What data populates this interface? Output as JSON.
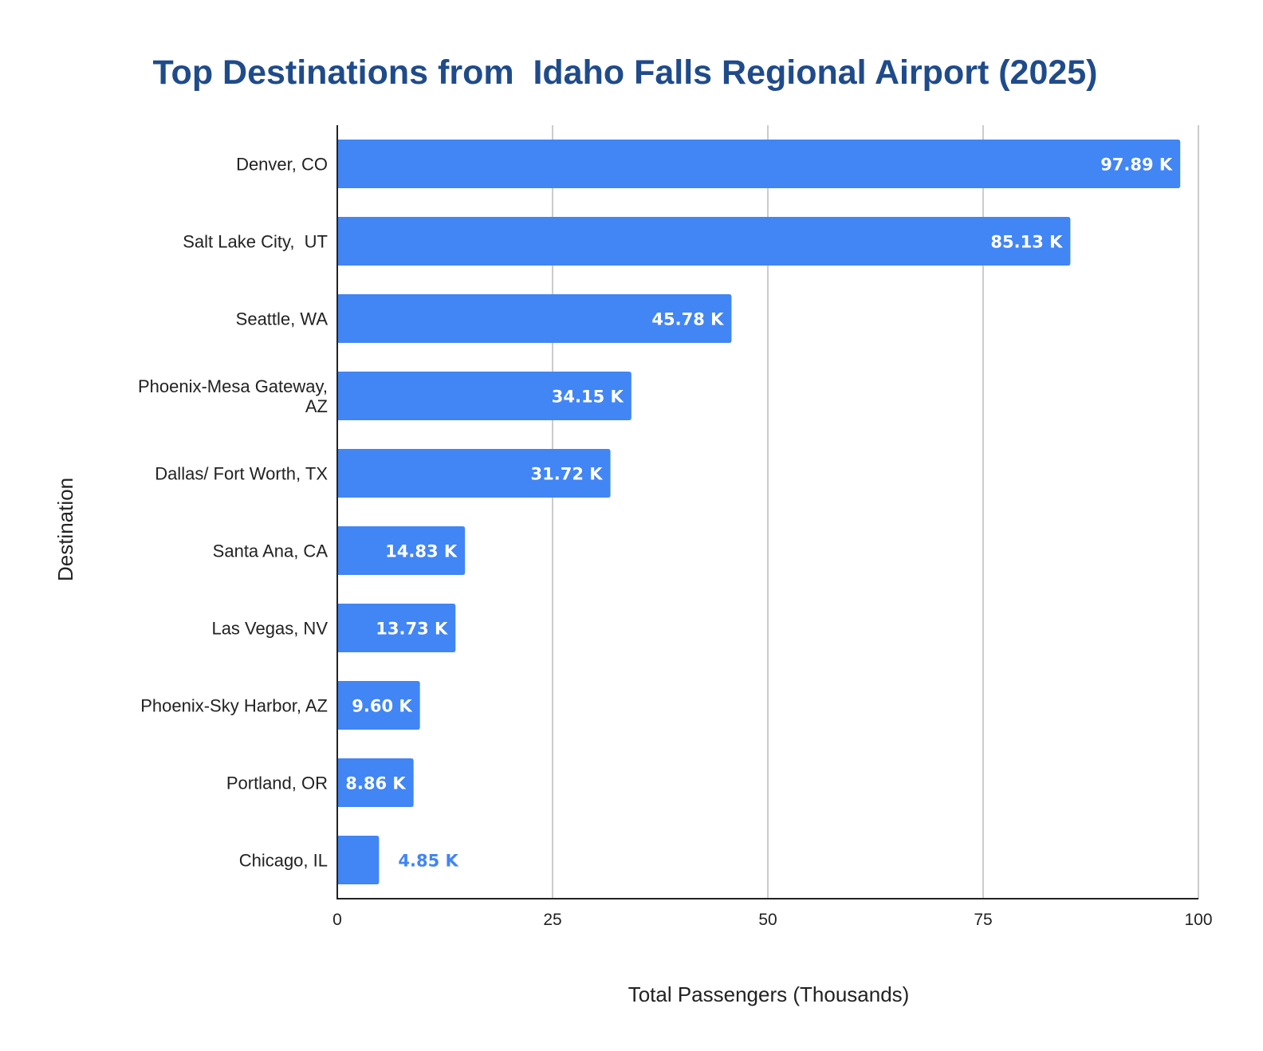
{
  "chart_data": {
    "type": "bar",
    "orientation": "horizontal",
    "title": "Top Destinations from  Idaho Falls Regional Airport (2025)",
    "xlabel": "Total Passengers (Thousands)",
    "ylabel": "Destination",
    "categories": [
      [
        "Denver, CO"
      ],
      [
        "Salt Lake City,  UT"
      ],
      [
        "Seattle, WA"
      ],
      [
        "Phoenix-Mesa Gateway,",
        "AZ"
      ],
      [
        "Dallas/ Fort Worth, TX"
      ],
      [
        "Santa Ana, CA"
      ],
      [
        "Las Vegas, NV"
      ],
      [
        "Phoenix-Sky Harbor, AZ"
      ],
      [
        "Portland, OR"
      ],
      [
        "Chicago, IL"
      ]
    ],
    "values": [
      97.89,
      85.13,
      45.78,
      34.15,
      31.72,
      14.83,
      13.73,
      9.6,
      8.86,
      4.85
    ],
    "data_labels": [
      "97.89 K",
      "85.13 K",
      "45.78 K",
      "34.15 K",
      "31.72 K",
      "14.83 K",
      "13.73 K",
      "9.60 K",
      "8.86 K",
      "4.85 K"
    ],
    "xlim": [
      0,
      100
    ],
    "xticks": [
      "0",
      "25",
      "50",
      "75",
      "100"
    ],
    "grid": "vertical",
    "legend": "none"
  },
  "colors": {
    "bar": "#4285F4",
    "title": "#1F4B8B",
    "grid": "#CCCCCC",
    "axis": "#222222",
    "label_inside": "#FFFFFF",
    "label_outside": "#4285F4"
  }
}
